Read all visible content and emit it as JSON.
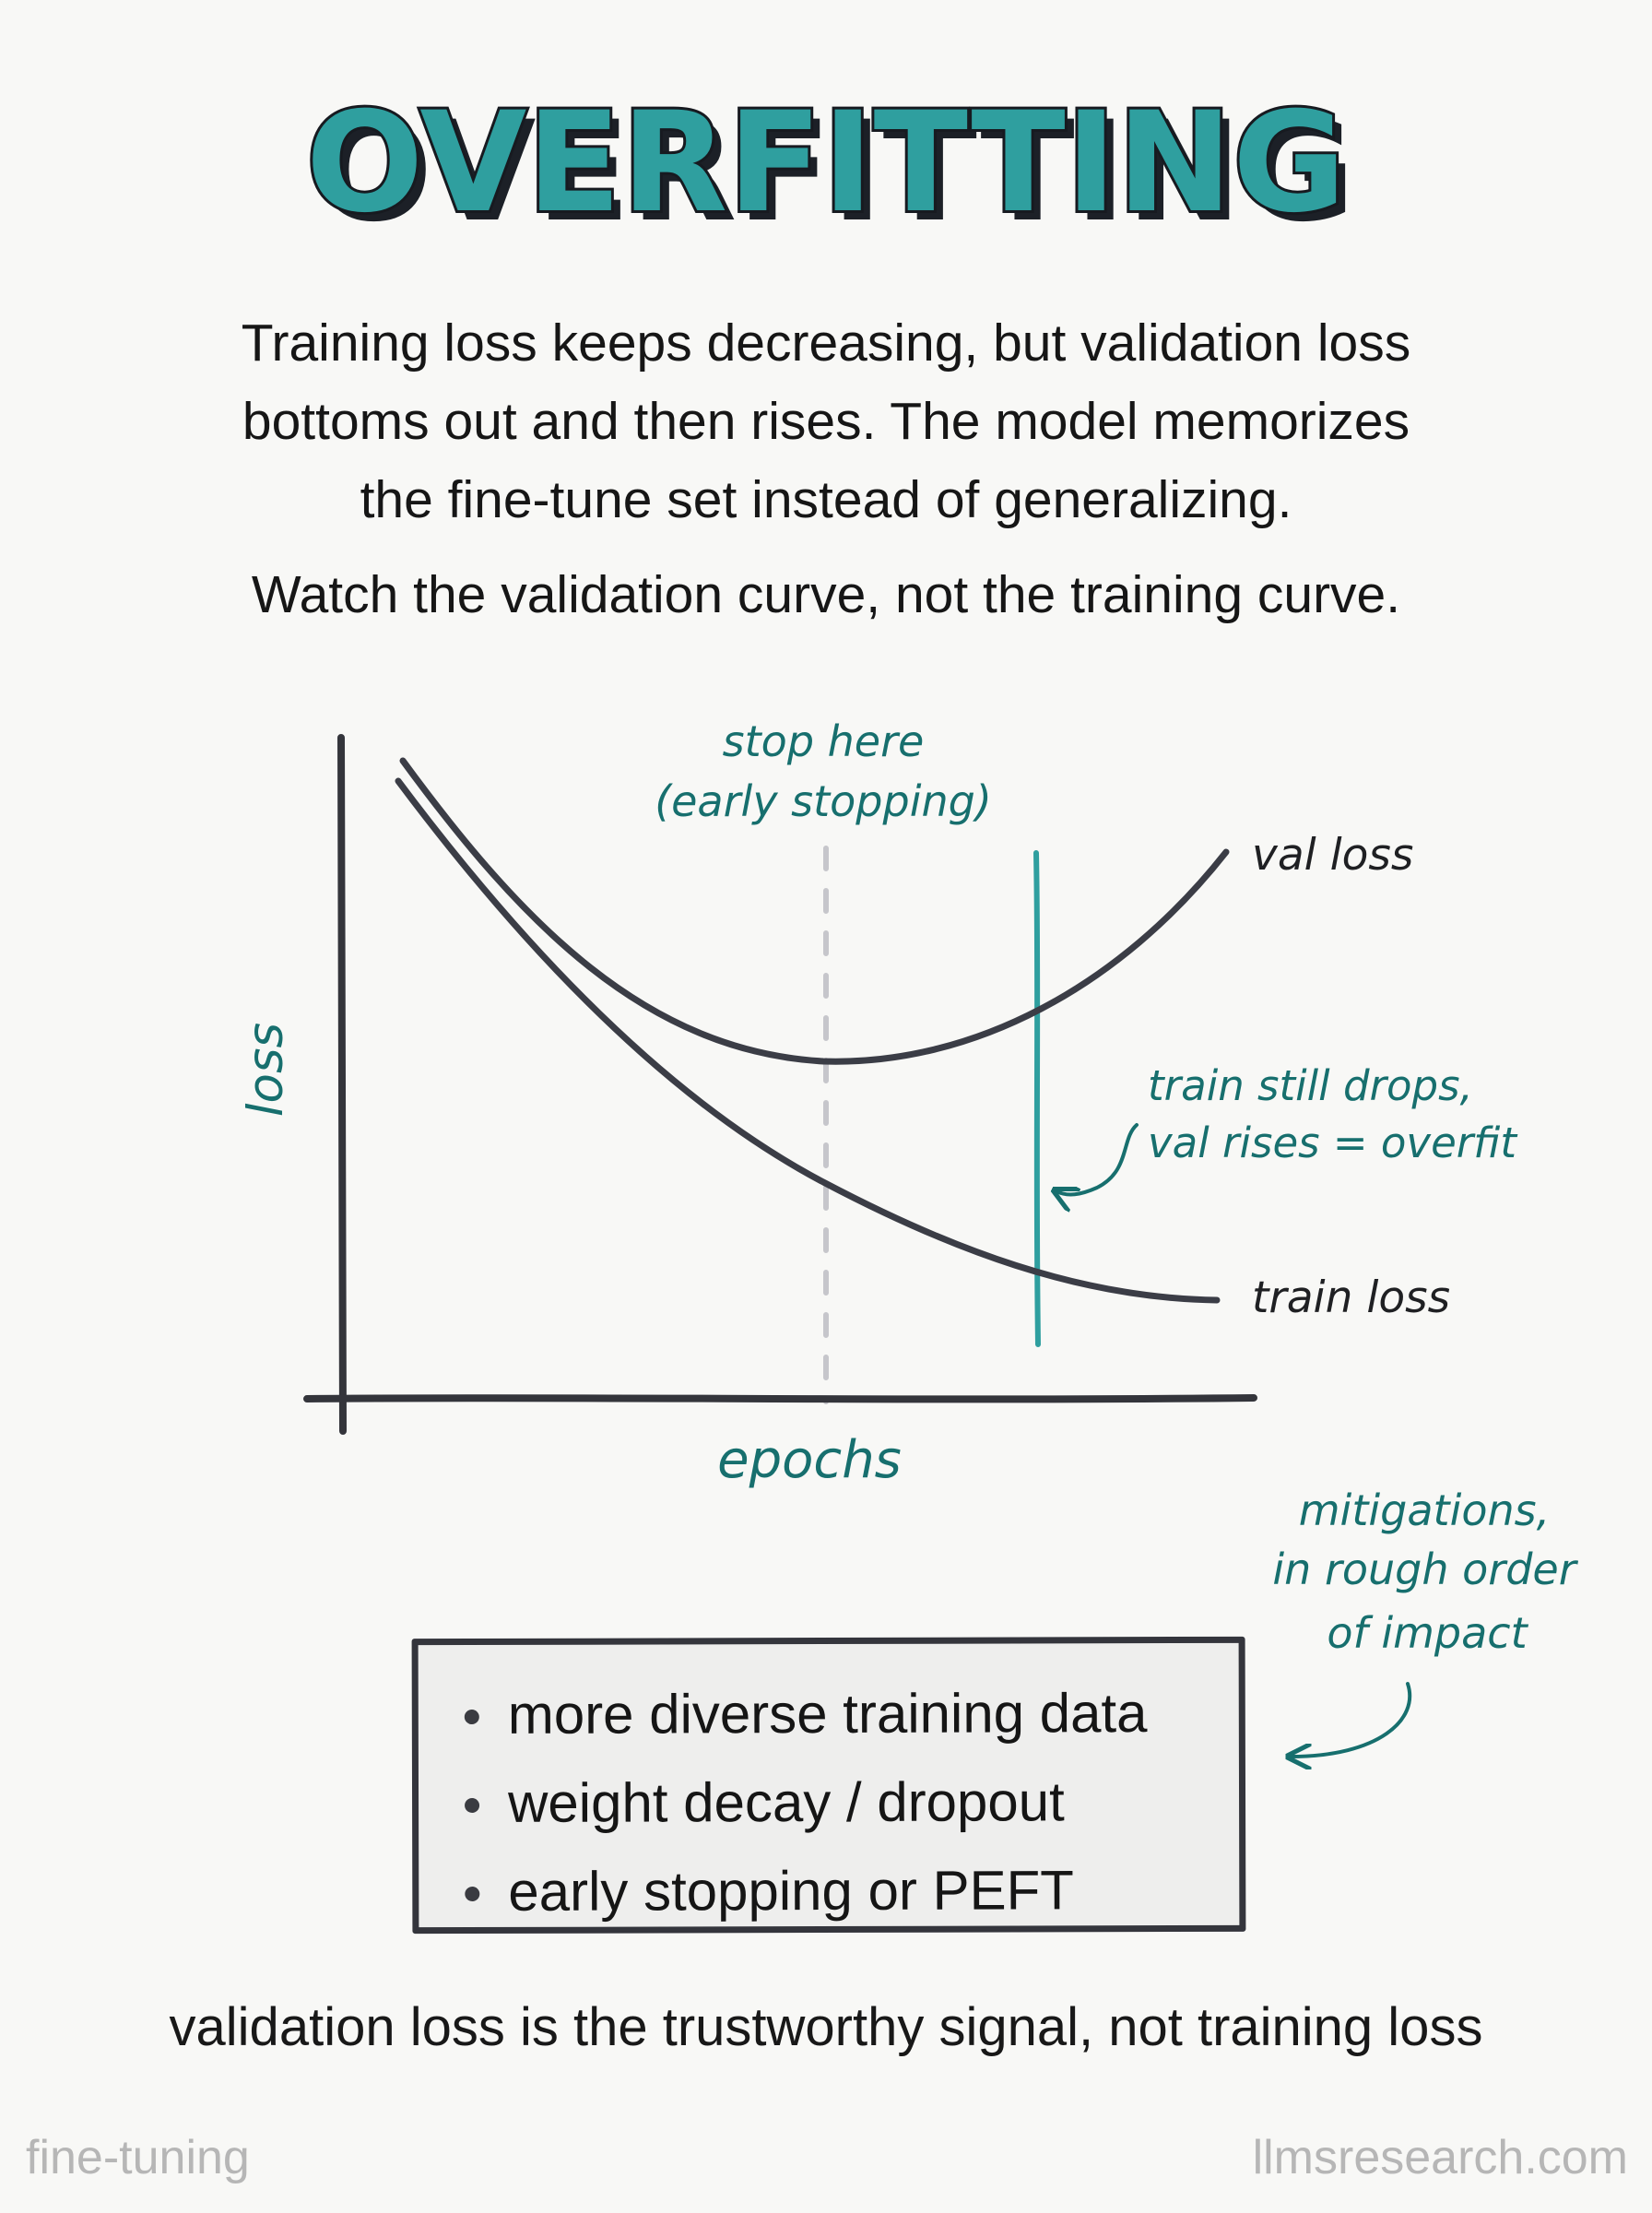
{
  "title": "OVERFITTING",
  "intro": {
    "lines": [
      "Training loss keeps decreasing, but validation loss",
      "bottoms out and then rises. The model memorizes",
      "the fine-tune set instead of generalizing."
    ],
    "watch_note": "Watch the validation curve, not the training curve."
  },
  "diagram": {
    "axis_labels": {
      "y": "loss",
      "x": "epochs"
    },
    "stop_annotation": {
      "line1": "stop here",
      "line2": "(early stopping)"
    },
    "curve_labels": {
      "val": "val loss",
      "train": "train loss"
    },
    "overfit_annotation": {
      "line1": "train still drops,",
      "line2": "val rises = overfit"
    },
    "mitigation_annotation": {
      "line1": "mitigations,",
      "line2": "in rough order",
      "line3": "of impact"
    }
  },
  "mitigations": [
    "more diverse training data",
    "weight decay / dropout",
    "early stopping or PEFT"
  ],
  "conclusion": "validation loss is the trustworthy signal, not training loss",
  "footer": {
    "left": "fine-tuning",
    "right": "llmsresearch.com"
  },
  "colors": {
    "accent": "#2f9f9f",
    "annotation": "#176f6e",
    "axis": "#34353b",
    "curve": "#3b3d46",
    "stop_line": "#c6c6cb",
    "footer": "#b6b6b6"
  }
}
